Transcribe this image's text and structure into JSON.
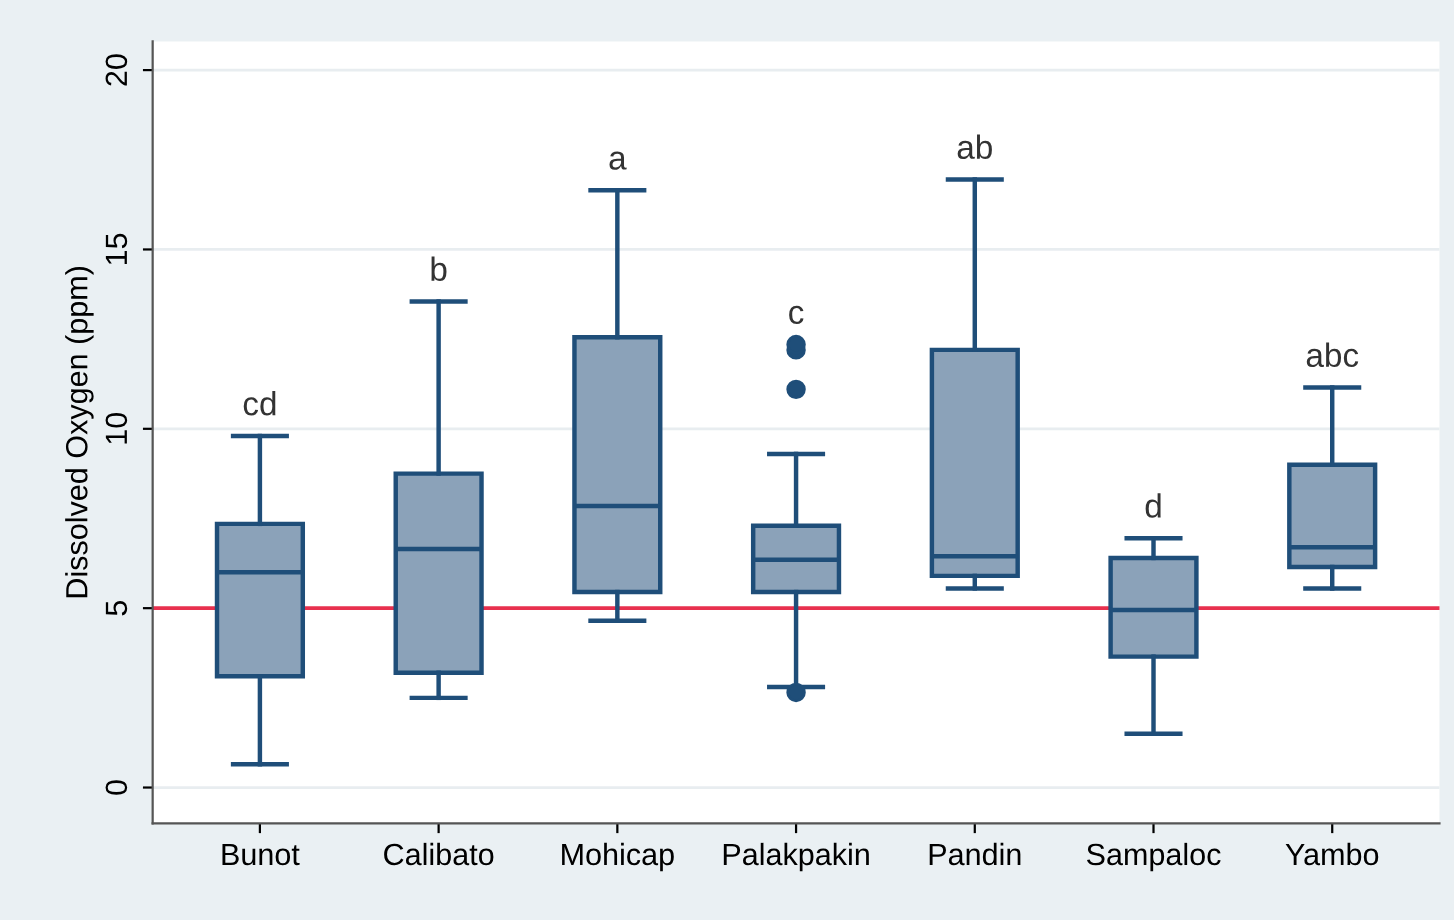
{
  "chart_data": {
    "type": "box",
    "ylabel": "Dissolved Oxygen (ppm)",
    "categories": [
      "Bunot",
      "Calibato",
      "Mohicap",
      "Palakpakin",
      "Pandin",
      "Sampaloc",
      "Yambo"
    ],
    "boxes": [
      {
        "low": 0.65,
        "q1": 3.1,
        "median": 6.0,
        "q3": 7.35,
        "high": 9.8
      },
      {
        "low": 2.5,
        "q1": 3.2,
        "median": 6.65,
        "q3": 8.75,
        "high": 13.55
      },
      {
        "low": 4.65,
        "q1": 5.45,
        "median": 7.85,
        "q3": 12.55,
        "high": 16.65
      },
      {
        "low": 2.8,
        "q1": 5.45,
        "median": 6.35,
        "q3": 7.3,
        "high": 9.3,
        "outliers": [
          12.2,
          12.35,
          11.1,
          2.65
        ]
      },
      {
        "low": 5.55,
        "q1": 5.9,
        "median": 6.45,
        "q3": 12.2,
        "high": 16.95
      },
      {
        "low": 1.5,
        "q1": 3.65,
        "median": 4.95,
        "q3": 6.4,
        "high": 6.95
      },
      {
        "low": 5.55,
        "q1": 6.15,
        "median": 6.7,
        "q3": 9.0,
        "high": 11.15
      }
    ],
    "color": "#8ba2b9",
    "ylim": [
      -1,
      20.8
    ],
    "yticks": [
      0,
      5,
      10,
      15,
      20
    ],
    "grid": "y",
    "ref_lines": [
      {
        "axis": "y",
        "value": 5,
        "color": "#e8304e"
      }
    ],
    "annotations": [
      "cd",
      "b",
      "a",
      "c",
      "ab",
      "d",
      "abc"
    ]
  }
}
